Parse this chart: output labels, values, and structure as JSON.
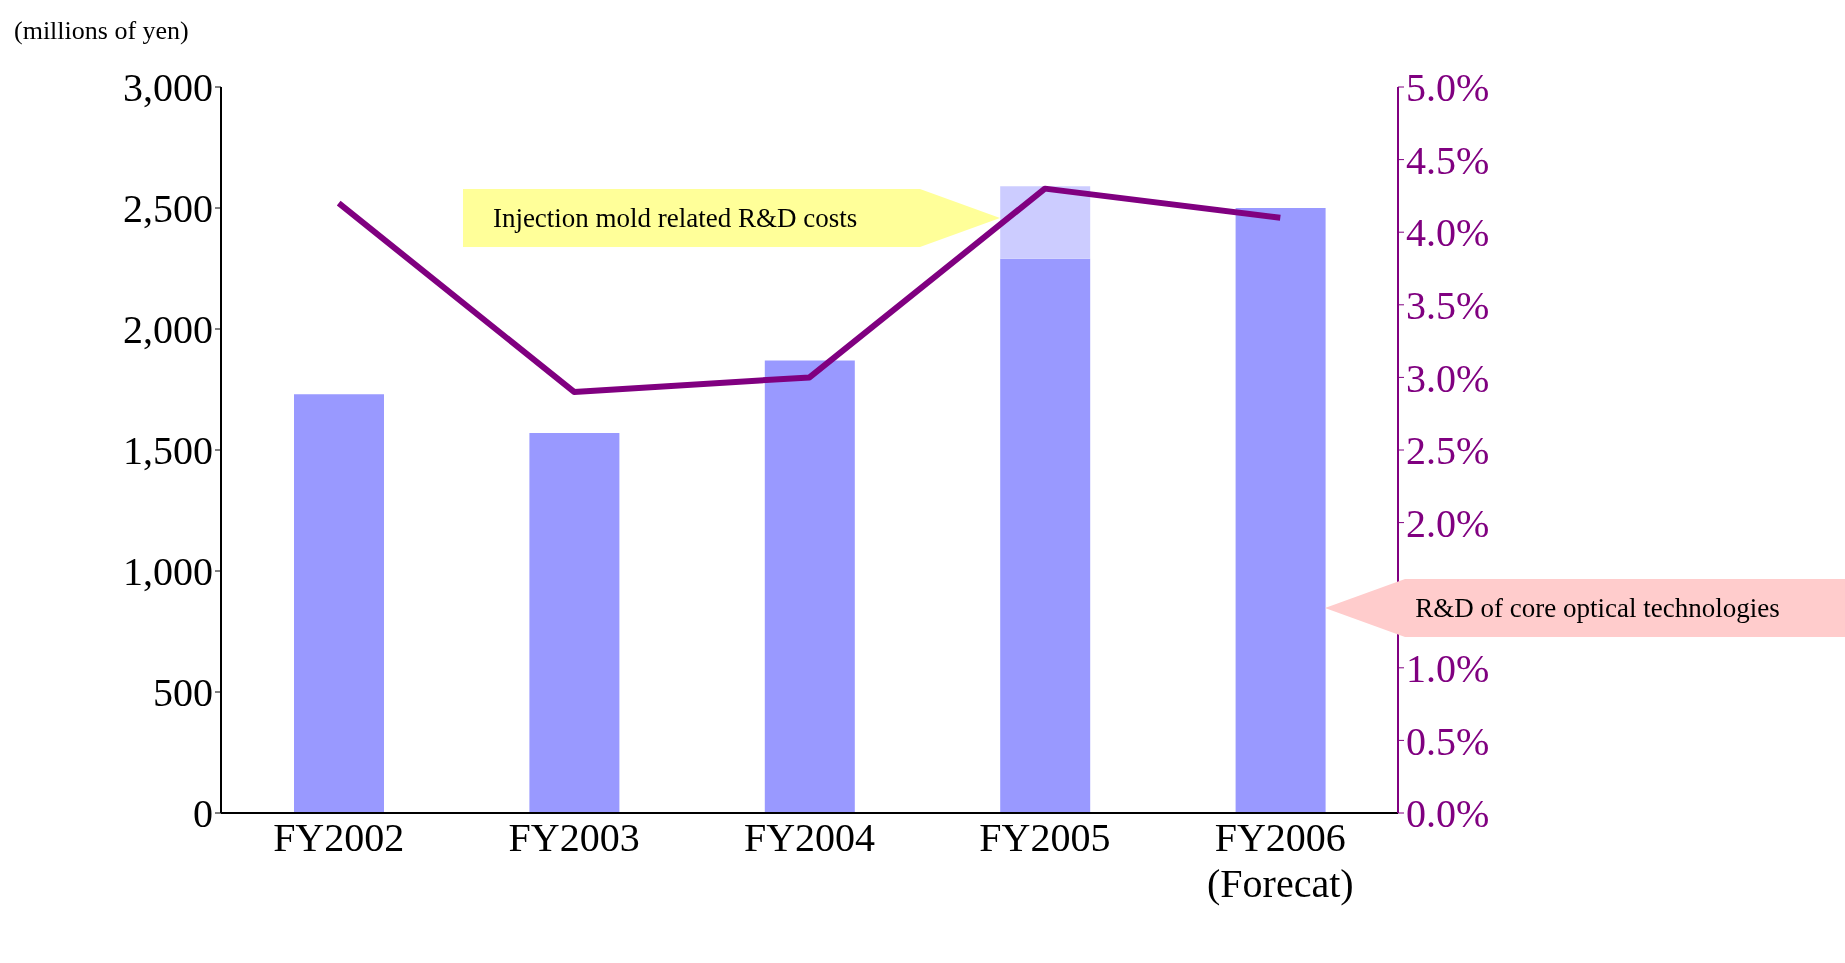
{
  "chart_data": {
    "type": "bar",
    "ylabel": "(millions of yen)",
    "categories": [
      "FY2002",
      "FY2003",
      "FY2004",
      "FY2005",
      "FY2006 (Forecat)"
    ],
    "stacked": true,
    "legend": false,
    "grid": false,
    "marker": "none",
    "series": [
      {
        "color": "#9999ff",
        "values": [
          1730,
          1570,
          1870,
          2290,
          2500
        ]
      },
      {
        "color": "#ccccff",
        "values": [
          null,
          null,
          null,
          300,
          null
        ]
      },
      {
        "type": "line",
        "axis": "y2",
        "color": "#800080",
        "values": [
          4.2,
          2.9,
          3.0,
          4.3,
          4.1
        ]
      }
    ],
    "annotations": [
      "R&D of core optical technologies",
      "Injection mold related R&D costs"
    ],
    "ylim": [
      0,
      3000
    ],
    "yticks": [
      0,
      500,
      {
        "value": 1000,
        "label": "1,000"
      },
      {
        "value": 1500,
        "label": "1,500"
      },
      {
        "value": 2000,
        "label": "2,000"
      },
      {
        "value": 2500,
        "label": "2,500"
      },
      {
        "value": 3000,
        "label": "3,000"
      }
    ],
    "y2lim": [
      0,
      5
    ],
    "y2ticks": [
      {
        "value": 0,
        "label": "0.0%"
      },
      {
        "value": 0.5,
        "label": "0.5%"
      },
      {
        "value": 1,
        "label": "1.0%"
      },
      {
        "value": 1.5,
        "label": null
      },
      {
        "value": 2,
        "label": "2.0%"
      },
      {
        "value": 2.5,
        "label": "2.5%"
      },
      {
        "value": 3,
        "label": "3.0%"
      },
      {
        "value": 3.5,
        "label": "3.5%"
      },
      {
        "value": 4,
        "label": "4.0%"
      },
      {
        "value": 4.5,
        "label": "4.5%"
      },
      {
        "value": 5,
        "label": "5.0%"
      }
    ]
  }
}
